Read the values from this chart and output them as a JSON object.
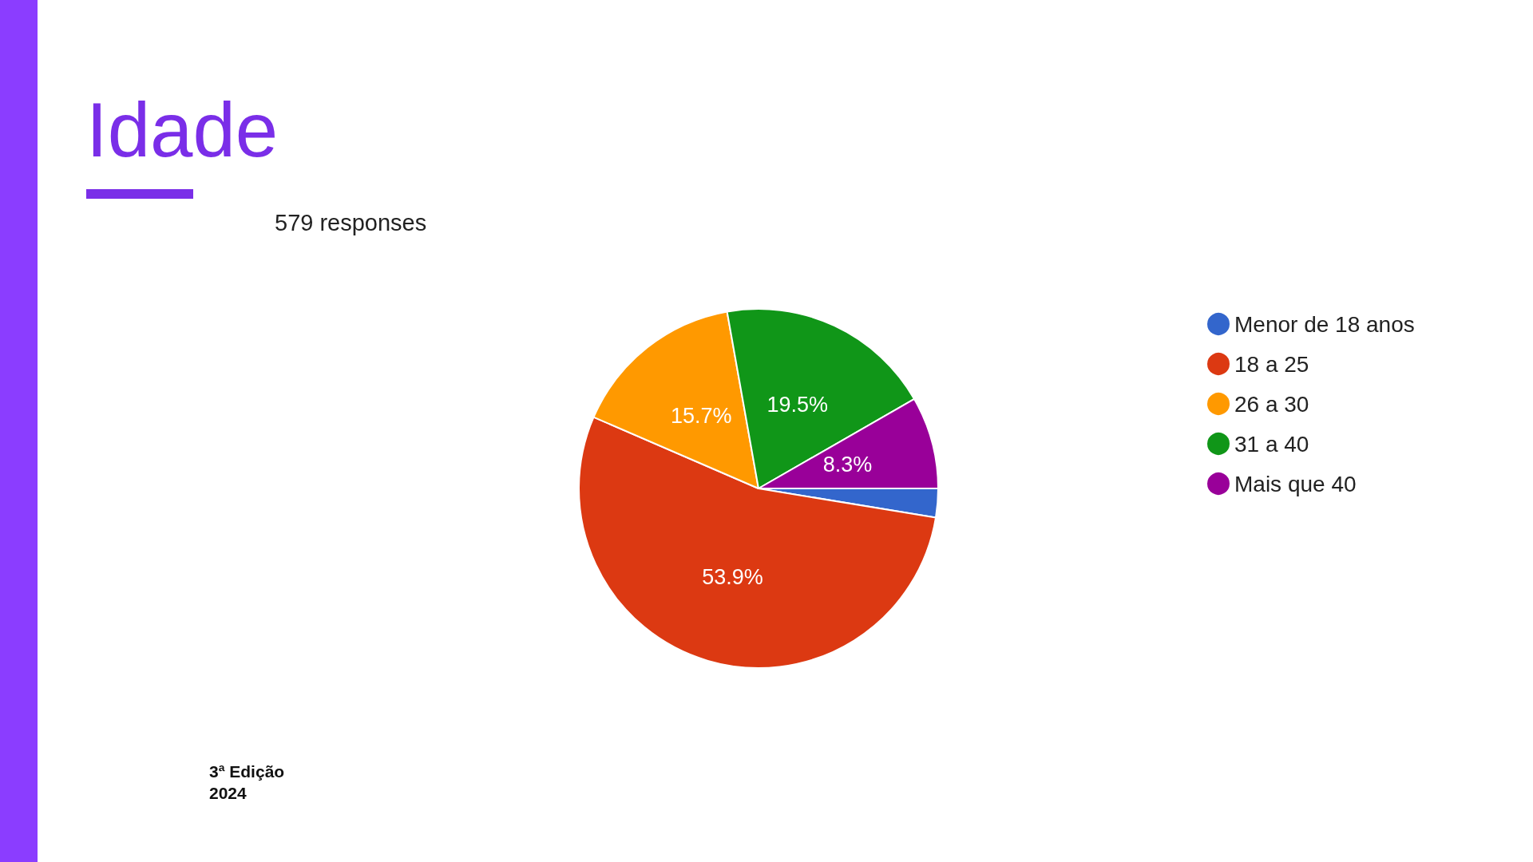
{
  "chart_data": {
    "type": "pie",
    "title": "Idade",
    "subtitle": "579 responses",
    "categories": [
      "Menor de 18 anos",
      "18 a 25",
      "26 a 30",
      "31 a 40",
      "Mais que 40"
    ],
    "values": [
      2.6,
      53.9,
      15.7,
      19.5,
      8.3
    ],
    "colors": [
      "#3366cc",
      "#dc3912",
      "#ff9900",
      "#109618",
      "#990099"
    ],
    "value_labels": [
      null,
      "53.9%",
      "15.7%",
      "19.5%",
      "8.3%"
    ],
    "legend": "right",
    "annotations": [
      "3ª Edição 2024"
    ]
  }
}
